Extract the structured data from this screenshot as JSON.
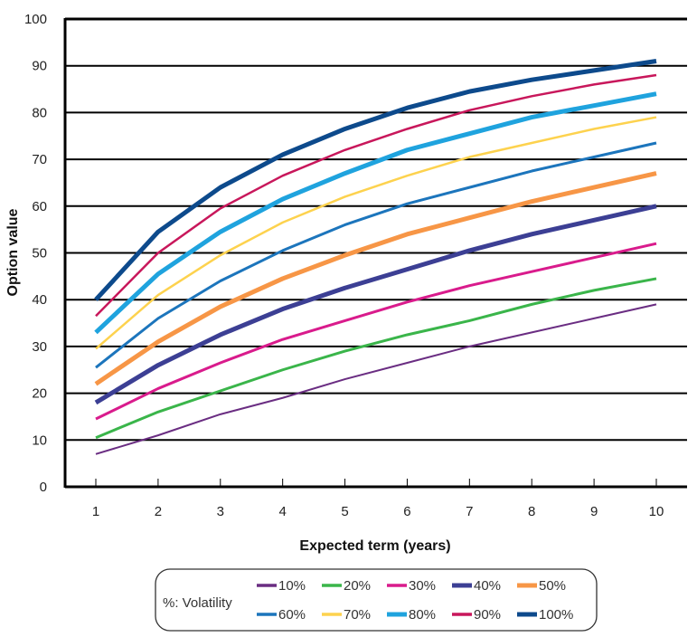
{
  "chart_data": {
    "type": "line",
    "xlabel": "Expected term (years)",
    "ylabel": "Option value",
    "x": [
      1,
      2,
      3,
      4,
      5,
      6,
      7,
      8,
      9,
      10
    ],
    "xlim": [
      0.5,
      10.5
    ],
    "ylim": [
      0,
      100
    ],
    "yticks": [
      0,
      10,
      20,
      30,
      40,
      50,
      60,
      70,
      80,
      90,
      100
    ],
    "grid": "horizontal",
    "legend_title": "%: Volatility",
    "legend_position": "bottom",
    "series": [
      {
        "name": "10%",
        "color": "#6a2d82",
        "values": [
          7,
          11,
          15.5,
          19,
          23,
          26.5,
          30,
          33,
          36,
          39
        ]
      },
      {
        "name": "20%",
        "color": "#3ab54a",
        "values": [
          10.5,
          16,
          20.5,
          25,
          29,
          32.5,
          35.5,
          39,
          42,
          44.5
        ]
      },
      {
        "name": "30%",
        "color": "#d91b8c",
        "values": [
          14.5,
          21,
          26.5,
          31.5,
          35.5,
          39.5,
          43,
          46,
          49,
          52
        ]
      },
      {
        "name": "40%",
        "color": "#3c3f94",
        "values": [
          18,
          26,
          32.5,
          38,
          42.5,
          46.5,
          50.5,
          54,
          57,
          60
        ]
      },
      {
        "name": "50%",
        "color": "#f79646",
        "values": [
          22,
          31,
          38.5,
          44.5,
          49.5,
          54,
          57.5,
          61,
          64,
          67
        ]
      },
      {
        "name": "60%",
        "color": "#1c75bc",
        "values": [
          25.5,
          36,
          44,
          50.5,
          56,
          60.5,
          64,
          67.5,
          70.5,
          73.5
        ]
      },
      {
        "name": "70%",
        "color": "#fdd24e",
        "values": [
          29.5,
          41,
          49.5,
          56.5,
          62,
          66.5,
          70.5,
          73.5,
          76.5,
          79
        ]
      },
      {
        "name": "80%",
        "color": "#1fa3de",
        "values": [
          33,
          45.5,
          54.5,
          61.5,
          67,
          72,
          75.5,
          79,
          81.5,
          84
        ]
      },
      {
        "name": "90%",
        "color": "#c8175b",
        "values": [
          36.5,
          50,
          59.5,
          66.5,
          72,
          76.5,
          80.5,
          83.5,
          86,
          88
        ]
      },
      {
        "name": "100%",
        "color": "#0d4a8c",
        "values": [
          40,
          54.5,
          64,
          71,
          76.5,
          81,
          84.5,
          87,
          89,
          91
        ]
      }
    ],
    "widths": {
      "10%": 2,
      "20%": 3,
      "30%": 3,
      "40%": 5,
      "50%": 5,
      "60%": 3,
      "70%": 2.5,
      "80%": 5,
      "90%": 2.5,
      "100%": 5
    }
  }
}
